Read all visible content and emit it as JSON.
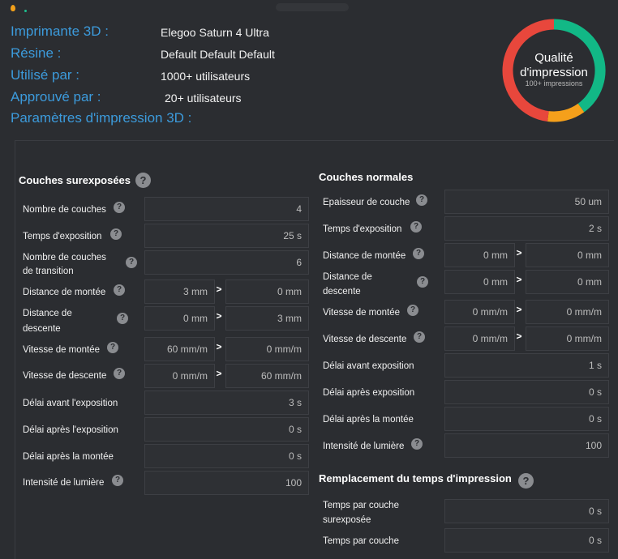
{
  "header": {
    "labels": {
      "printer": "Imprimante 3D :",
      "resin": "Résine :",
      "used_by": "Utilisé par :",
      "approved_by": "Approuvé par :",
      "params": "Paramètres d'impression 3D :"
    },
    "values": {
      "printer": "Elegoo Saturn 4 Ultra",
      "resin": "Default Default Default",
      "used_by": "1000+ utilisateurs",
      "approved_by": "20+ utilisateurs"
    }
  },
  "quality": {
    "title_line1": "Qualité",
    "title_line2": "d'impression",
    "subtitle": "100+ impressions",
    "segments": [
      {
        "color": "#12b886",
        "fraction": 0.4
      },
      {
        "color": "#f5a01b",
        "fraction": 0.12
      },
      {
        "color": "#e8473c",
        "fraction": 0.48
      }
    ]
  },
  "help_glyph": "?",
  "arrow_glyph": ">",
  "overexposed": {
    "title": "Couches surexposées",
    "rows": {
      "count": {
        "label": "Nombre de couches",
        "value": "4"
      },
      "exposure": {
        "label": "Temps d'exposition",
        "value": "25 s"
      },
      "transition": {
        "label1": "Nombre de couches",
        "label2": "de transition",
        "value": "6"
      },
      "lift_distance": {
        "label": "Distance de montée",
        "value1": "3 mm",
        "value2": "0 mm"
      },
      "retract_distance": {
        "label1": "Distance de",
        "label2": "descente",
        "value1": "0 mm",
        "value2": "3 mm"
      },
      "lift_speed": {
        "label": "Vitesse de montée",
        "value1": "60 mm/m",
        "value2": "0 mm/m"
      },
      "retract_speed": {
        "label": "Vitesse de descente",
        "value1": "0 mm/m",
        "value2": "60 mm/m"
      },
      "wait_before": {
        "label": "Délai avant l'exposition",
        "value": "3 s"
      },
      "wait_after": {
        "label": "Délai après l'exposition",
        "value": "0 s"
      },
      "wait_after_lift": {
        "label": "Délai après la montée",
        "value": "0 s"
      },
      "light": {
        "label": "Intensité de lumière",
        "value": "100"
      }
    }
  },
  "normal": {
    "title": "Couches normales",
    "rows": {
      "thickness": {
        "label": "Epaisseur de couche",
        "value": "50 um"
      },
      "exposure": {
        "label": "Temps d'exposition",
        "value": "2 s"
      },
      "lift_distance": {
        "label": "Distance de montée",
        "value1": "0 mm",
        "value2": "0 mm"
      },
      "retract_distance": {
        "label1": "Distance de",
        "label2": "descente",
        "value1": "0 mm",
        "value2": "0 mm"
      },
      "lift_speed": {
        "label": "Vitesse de montée",
        "value1": "0 mm/m",
        "value2": "0 mm/m"
      },
      "retract_speed": {
        "label": "Vitesse de descente",
        "value1": "0 mm/m",
        "value2": "0 mm/m"
      },
      "wait_before": {
        "label": "Délai avant exposition",
        "value": "1 s"
      },
      "wait_after": {
        "label": "Délai après exposition",
        "value": "0 s"
      },
      "wait_after_lift": {
        "label": "Délai après la montée",
        "value": "0 s"
      },
      "light": {
        "label": "Intensité de lumière",
        "value": "100"
      }
    }
  },
  "print_time": {
    "title": "Remplacement du temps d'impression",
    "rows": {
      "overexposed": {
        "label1": "Temps par couche",
        "label2": "surexposée",
        "value": "0 s"
      },
      "normal": {
        "label": "Temps par couche",
        "value": "0 s"
      }
    }
  }
}
